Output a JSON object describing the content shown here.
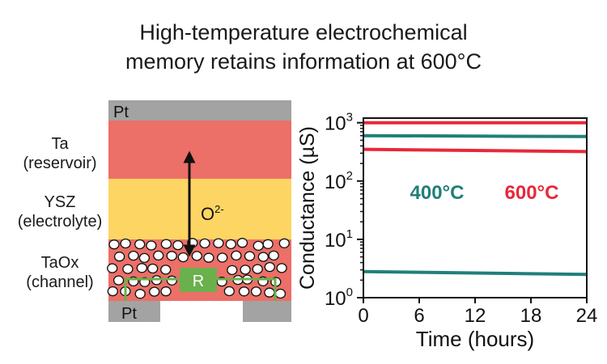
{
  "title": {
    "line1": "High-temperature electrochemical",
    "line2": "memory retains information at 600°C"
  },
  "device": {
    "top_electrode": "Pt",
    "bottom_electrode": "Pt",
    "layers": [
      {
        "name": "Ta",
        "role": "(reservoir)",
        "color": "#ec6f68"
      },
      {
        "name": "YSZ",
        "role": "(electrolyte)",
        "color": "#fdd563"
      },
      {
        "name": "TaOx",
        "role": "(channel)",
        "color": "#ec6f68"
      }
    ],
    "ion_label": "O",
    "ion_charge": "2-",
    "resistor_label": "R",
    "electrode_color": "#a3a3a3",
    "resistor_color": "#6ab04c"
  },
  "chart_data": {
    "type": "line",
    "xlabel": "Time (hours)",
    "ylabel": "Conductance (µS)",
    "x_ticks": [
      "0",
      "6",
      "12",
      "18",
      "24"
    ],
    "xlim": [
      0,
      24
    ],
    "ylim": [
      1,
      1200
    ],
    "yscale": "log",
    "y_ticks": [
      {
        "value": 1,
        "base": "10",
        "exp": "0"
      },
      {
        "value": 10,
        "base": "10",
        "exp": "1"
      },
      {
        "value": 100,
        "base": "10",
        "exp": "2"
      },
      {
        "value": 1000,
        "base": "10",
        "exp": "3"
      }
    ],
    "series": [
      {
        "name": "400°C",
        "color": "#1f8079",
        "x": [
          0,
          24
        ],
        "values": [
          600,
          580
        ]
      },
      {
        "name": "400°C",
        "color": "#1f8079",
        "x": [
          0,
          24
        ],
        "values": [
          2.8,
          2.5
        ]
      },
      {
        "name": "600°C",
        "color": "#e8283a",
        "x": [
          0,
          24
        ],
        "values": [
          1000,
          1000
        ]
      },
      {
        "name": "600°C",
        "color": "#e8283a",
        "x": [
          0,
          24
        ],
        "values": [
          350,
          320
        ]
      }
    ],
    "annotations": [
      {
        "text": "400°C",
        "color": "#1f8079"
      },
      {
        "text": "600°C",
        "color": "#e8283a"
      }
    ]
  }
}
